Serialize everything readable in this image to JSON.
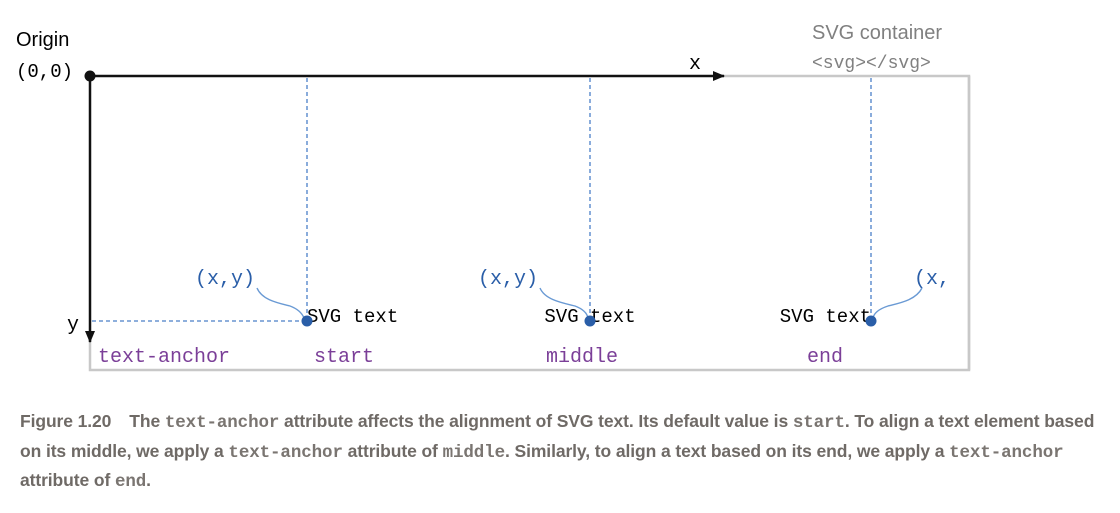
{
  "origin": {
    "title": "Origin",
    "coords": "(0,0)"
  },
  "axes": {
    "x": "x",
    "y": "y"
  },
  "container": {
    "title": "SVG container",
    "tag": "<svg></svg>"
  },
  "anchor_label": "text-anchor",
  "examples": [
    {
      "value": "start",
      "text": "SVG text",
      "point": "(x,y)"
    },
    {
      "value": "middle",
      "text": "SVG text",
      "point": "(x,y)"
    },
    {
      "value": "end",
      "text": "SVG text",
      "point": "(x,"
    }
  ],
  "colors": {
    "point": "#2a5ea8",
    "anchor": "#7b3f98",
    "container": "#c8c8c8",
    "axis": "#111111"
  },
  "caption": {
    "label": "Figure 1.20",
    "p1": "The ",
    "c1": "text-anchor",
    "p2": " attribute affects the alignment of SVG text. Its default value is ",
    "c2": "start",
    "p3": ". To align a text element based on its middle, we apply a ",
    "c3": "text-anchor",
    "p4": " attribute of ",
    "c4": "middle",
    "p5": ". Similarly, to align a text based on its end, we apply a ",
    "c5": "text-anchor",
    "p6": " attribute of ",
    "c6": "end",
    "p7": "."
  }
}
